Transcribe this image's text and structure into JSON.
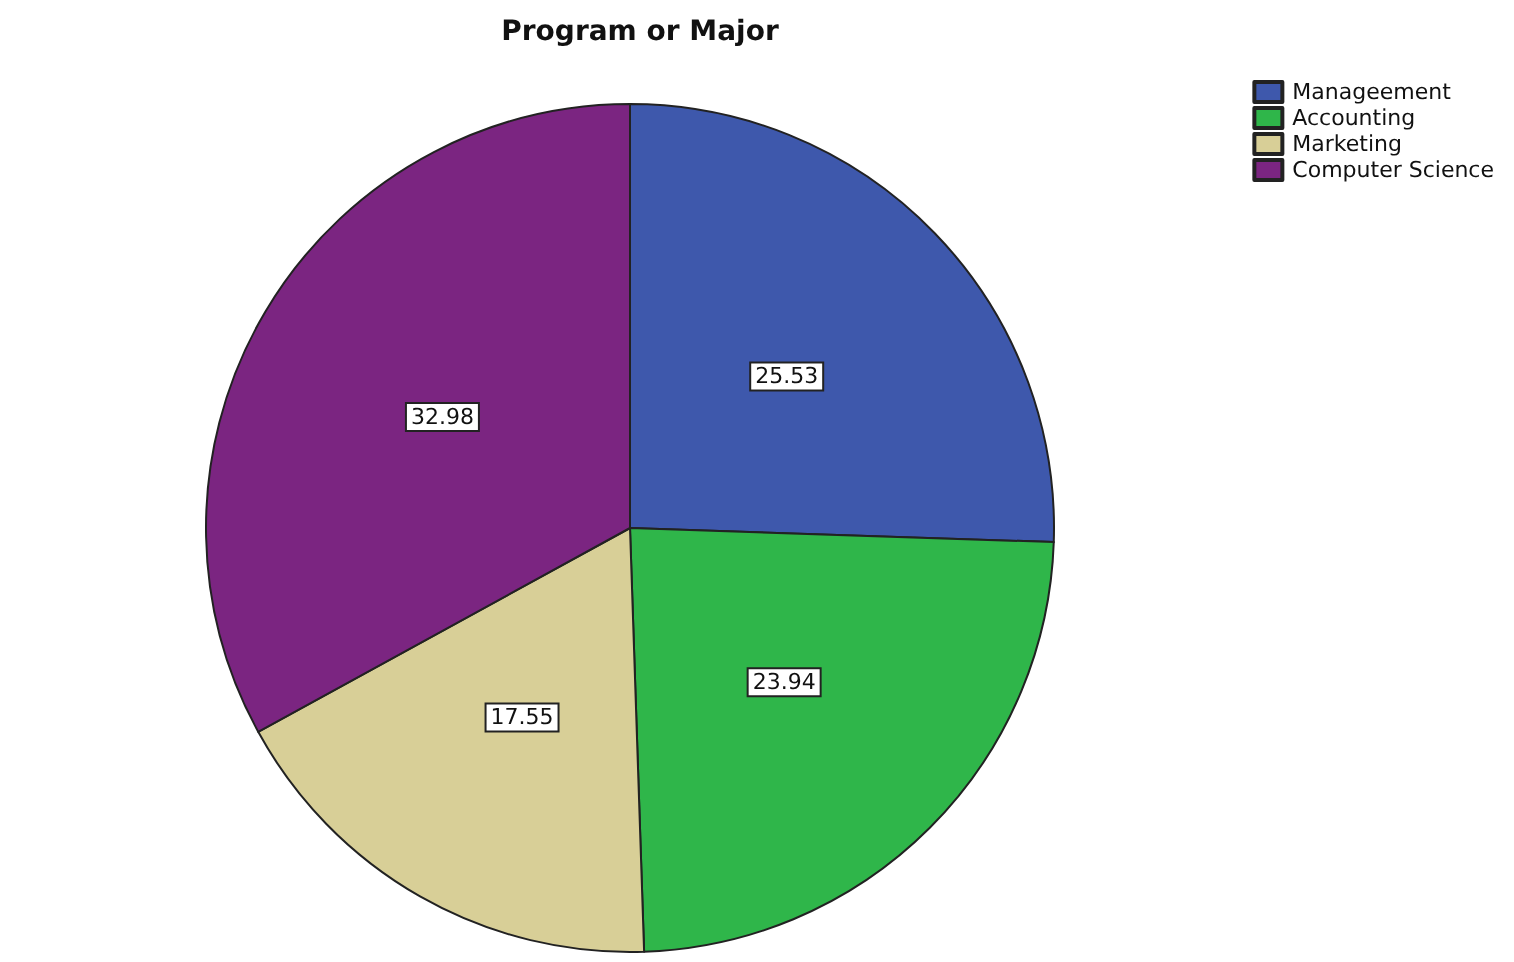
{
  "chart_data": {
    "type": "pie",
    "title": "Program or Major",
    "categories": [
      "Manageement",
      "Accounting",
      "Marketing",
      "Computer Science"
    ],
    "values": [
      25.53,
      23.94,
      17.55,
      32.98
    ],
    "colors": [
      "#3e58ac",
      "#2fb64a",
      "#d8cf97",
      "#7b2581"
    ],
    "data_labels": true,
    "legend": "top right"
  }
}
